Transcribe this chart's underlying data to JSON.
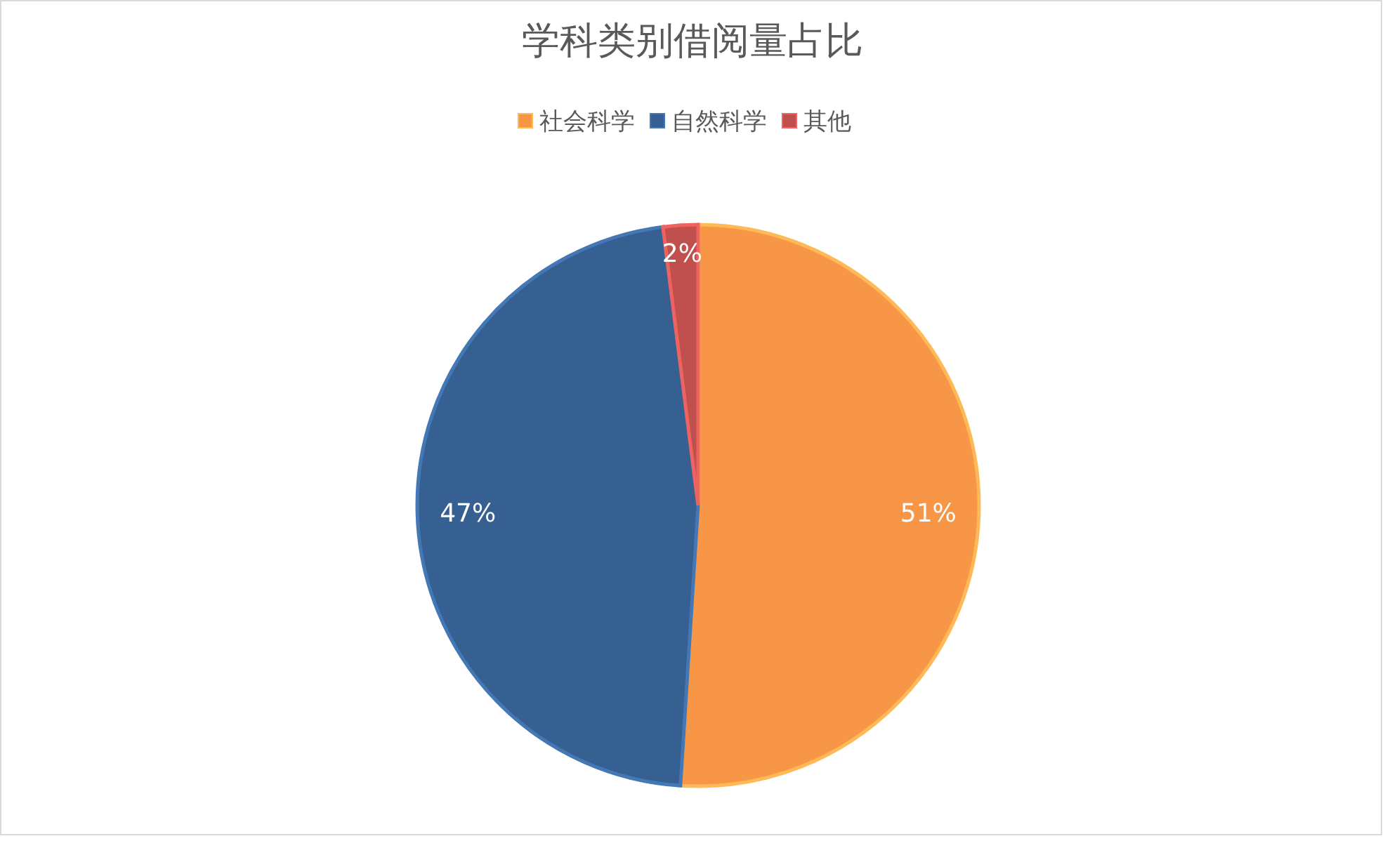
{
  "chart_data": {
    "type": "pie",
    "title": "学科类别借阅量占比",
    "categories": [
      "社会科学",
      "自然科学",
      "其他"
    ],
    "values": [
      51,
      47,
      2
    ],
    "colors": [
      "#f79646",
      "#376092",
      "#c0504d"
    ],
    "value_labels": [
      "51%",
      "47%",
      "2%"
    ],
    "legend": "top"
  }
}
